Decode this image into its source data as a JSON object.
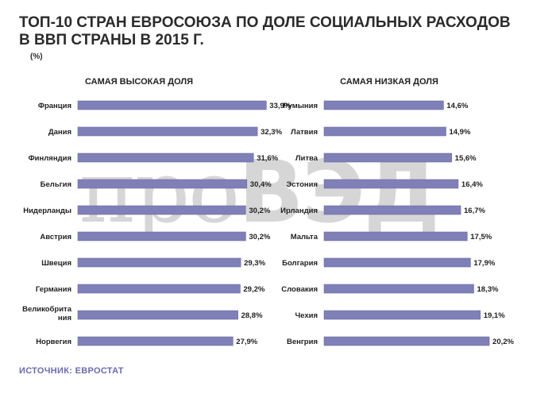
{
  "title": "ТОП-10 СТРАН ЕВРОСОЮЗА ПО ДОЛЕ СОЦИАЛЬНЫХ РАСХОДОВ В ВВП СТРАНЫ  В 2015 Г.",
  "unit": "(%)",
  "watermark": {
    "part1": "про",
    "part2": "ВЭД"
  },
  "source": "ИСТОЧНИК: ЕВРОСТАТ",
  "colors": {
    "bar": "#8080b8",
    "bar_edge": "#6a6aa6",
    "source": "#6b6bb0"
  },
  "chart_data": [
    {
      "type": "bar",
      "title": "САМАЯ ВЫСОКАЯ ДОЛЯ",
      "categories": [
        "Франция",
        "Дания",
        "Финляндия",
        "Бельгия",
        "Нидерланды",
        "Австрия",
        "Швеция",
        "Германия",
        "Великобрита ния",
        "Норвегия"
      ],
      "values": [
        33.9,
        32.3,
        31.6,
        30.4,
        30.2,
        30.2,
        29.3,
        29.2,
        28.8,
        27.9
      ],
      "labels": [
        "33,9%",
        "32,3%",
        "31,6%",
        "30,4%",
        "30,2%",
        "30,2%",
        "29,3%",
        "29,2%",
        "28,8%",
        "27,9%"
      ],
      "orientation": "horizontal",
      "grid": false
    },
    {
      "type": "bar",
      "title": "САМАЯ НИЗКАЯ ДОЛЯ",
      "categories": [
        "Румыния",
        "Латвия",
        "Литва",
        "Эстония",
        "Ирландия",
        "Мальта",
        "Болгария",
        "Словакия",
        "Чехия",
        "Венгрия"
      ],
      "values": [
        14.6,
        14.9,
        15.6,
        16.4,
        16.7,
        17.5,
        17.9,
        18.3,
        19.1,
        20.2
      ],
      "labels": [
        "14,6%",
        "14,9%",
        "15,6%",
        "16,4%",
        "16,7%",
        "17,5%",
        "17,9%",
        "18,3%",
        "19,1%",
        "20,2%"
      ],
      "orientation": "horizontal",
      "grid": false
    }
  ]
}
